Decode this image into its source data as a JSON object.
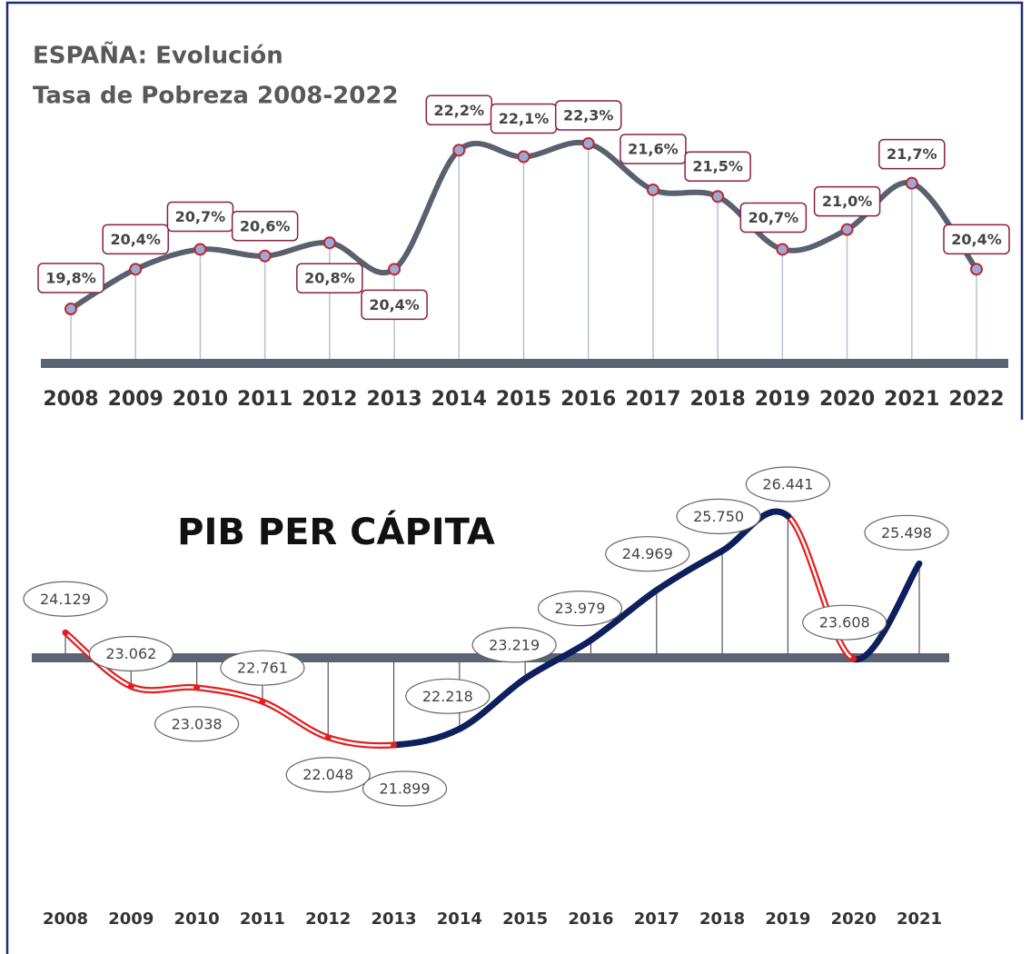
{
  "chart_data": [
    {
      "type": "line",
      "title": "ESPAÑA: Evolución",
      "subtitle": "Tasa de Pobreza 2008-2022",
      "categories": [
        "2008",
        "2009",
        "2010",
        "2011",
        "2012",
        "2013",
        "2014",
        "2015",
        "2016",
        "2017",
        "2018",
        "2019",
        "2020",
        "2021",
        "2022"
      ],
      "values": [
        19.8,
        20.4,
        20.7,
        20.6,
        20.8,
        20.4,
        22.2,
        22.1,
        22.3,
        21.6,
        21.5,
        20.7,
        21.0,
        21.7,
        20.4
      ],
      "value_labels": [
        "19,8%",
        "20,4%",
        "20,7%",
        "20,6%",
        "20,8%",
        "20,4%",
        "22,2%",
        "22,1%",
        "22,3%",
        "21,6%",
        "21,5%",
        "20,7%",
        "21,0%",
        "21,7%",
        "20,4%"
      ],
      "color": "#59606e",
      "marker_color": "#9aaad8"
    },
    {
      "type": "line",
      "title": "PIB PER CÁPITA",
      "categories": [
        "2008",
        "2009",
        "2010",
        "2011",
        "2012",
        "2013",
        "2014",
        "2015",
        "2016",
        "2017",
        "2018",
        "2019",
        "2020",
        "2021"
      ],
      "values": [
        24129,
        23062,
        23038,
        22761,
        22048,
        21899,
        22218,
        23219,
        23979,
        24969,
        25750,
        26441,
        23608,
        25498
      ],
      "value_labels": [
        "24.129",
        "23.062",
        "23.038",
        "22.761",
        "22.048",
        "21.899",
        "22.218",
        "23.219",
        "23.979",
        "24.969",
        "25.750",
        "26.441",
        "23.608",
        "25.498"
      ],
      "color": "#0d1f5c",
      "decline_color": "#e41e20"
    }
  ]
}
